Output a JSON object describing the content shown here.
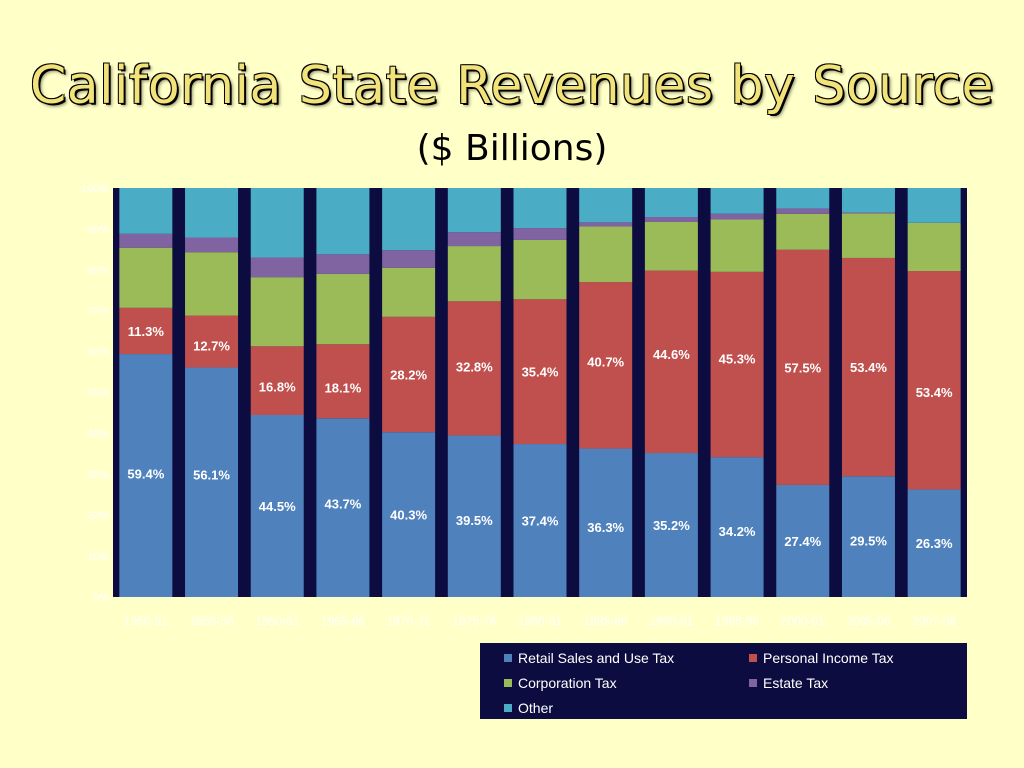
{
  "title": "California State Revenues by Source",
  "subtitle": "($ Billions)",
  "chart_data": {
    "type": "bar",
    "stacked": true,
    "percent": true,
    "categories": [
      "1950-51",
      "1955-56",
      "1960-61",
      "1965-66",
      "1970-71",
      "1975-76",
      "1980-81",
      "1985-86",
      "1990-91",
      "1995-96",
      "2000-01",
      "2005-06",
      "2007-08"
    ],
    "yticks": [
      "0%",
      "10%",
      "20%",
      "30%",
      "40%",
      "50%",
      "60%",
      "70%",
      "80%",
      "90%",
      "100%"
    ],
    "ylim": [
      0,
      100
    ],
    "grid": false,
    "legend_position": "bottom-right",
    "series": [
      {
        "name": "Retail Sales and Use Tax",
        "color": "#4F81BD",
        "values": [
          59.4,
          56.1,
          44.5,
          43.7,
          40.3,
          39.5,
          37.4,
          36.3,
          35.2,
          34.2,
          27.4,
          29.5,
          26.3
        ],
        "labels": [
          "59.4%",
          "56.1%",
          "44.5%",
          "43.7%",
          "40.3%",
          "39.5%",
          "37.4%",
          "36.3%",
          "35.2%",
          "34.2%",
          "27.4%",
          "29.5%",
          "26.3%"
        ]
      },
      {
        "name": "Personal Income Tax",
        "color": "#C0504D",
        "values": [
          11.3,
          12.7,
          16.8,
          18.1,
          28.2,
          32.8,
          35.4,
          40.7,
          44.6,
          45.3,
          57.5,
          53.4,
          53.4
        ],
        "labels": [
          "11.3%",
          "12.7%",
          "16.8%",
          "18.1%",
          "28.2%",
          "32.8%",
          "35.4%",
          "40.7%",
          "44.6%",
          "45.3%",
          "57.5%",
          "53.4%",
          "53.4%"
        ]
      },
      {
        "name": "Corporation Tax",
        "color": "#9BBB59",
        "values": [
          14.7,
          15.5,
          16.9,
          17.2,
          12.0,
          13.5,
          14.5,
          13.6,
          11.9,
          12.8,
          8.8,
          10.9,
          11.8
        ]
      },
      {
        "name": "Estate Tax",
        "color": "#8064A2",
        "values": [
          3.4,
          3.6,
          4.8,
          4.8,
          4.3,
          3.4,
          2.9,
          1.0,
          1.2,
          1.4,
          1.3,
          0.2,
          0
        ]
      },
      {
        "name": "Other",
        "color": "#4BACC6",
        "values": [
          11.2,
          12.1,
          17.0,
          16.2,
          15.2,
          10.8,
          9.8,
          8.4,
          7.1,
          6.3,
          5.0,
          6.0,
          8.5
        ]
      }
    ]
  }
}
